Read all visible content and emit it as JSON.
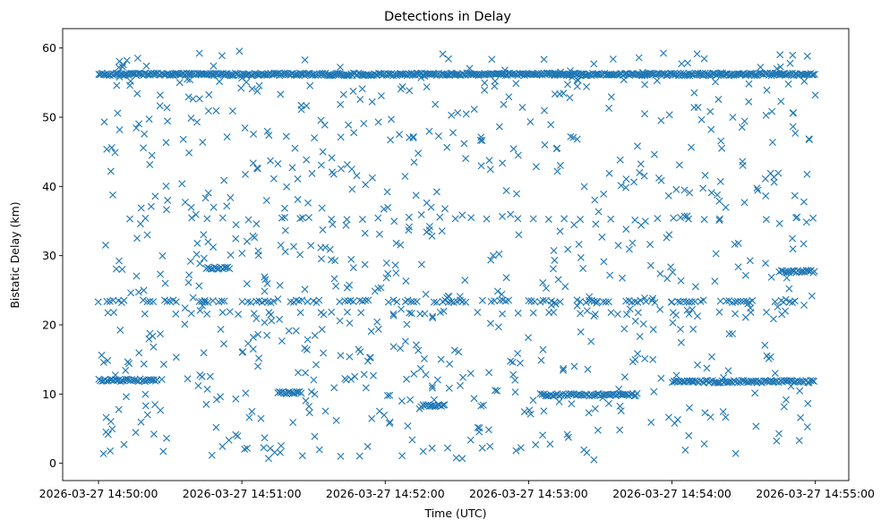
{
  "chart_data": {
    "type": "scatter",
    "title": "Detections in Delay",
    "xlabel": "Time (UTC)",
    "ylabel": "Bistatic Delay (km)",
    "marker": "x",
    "color": "#1f77b4",
    "xlim": [
      "2026-03-27 14:49:45",
      "2026-03-27 14:55:14"
    ],
    "ylim": [
      -2.5,
      62.8
    ],
    "x_ticks": [
      "2026-03-27 14:50:00",
      "2026-03-27 14:51:00",
      "2026-03-27 14:52:00",
      "2026-03-27 14:53:00",
      "2026-03-27 14:54:00",
      "2026-03-27 14:55:00"
    ],
    "y_ticks": [
      0,
      10,
      20,
      30,
      40,
      50,
      60
    ],
    "grid": false,
    "bands": [
      {
        "y": 56.2,
        "x_start": "2026-03-27 14:50:00",
        "x_end": "2026-03-27 14:55:00",
        "density": "continuous"
      },
      {
        "y": 23.4,
        "x_start": "2026-03-27 14:50:00",
        "x_end": "2026-03-27 14:55:00",
        "density": "intermittent"
      },
      {
        "y": 12.0,
        "x_start": "2026-03-27 14:50:00",
        "x_end": "2026-03-27 14:50:25",
        "density": "segment"
      },
      {
        "y": 9.9,
        "x_start": "2026-03-27 14:53:05",
        "x_end": "2026-03-27 14:53:45",
        "density": "segment"
      },
      {
        "y": 11.8,
        "x_start": "2026-03-27 14:54:00",
        "x_end": "2026-03-27 14:55:00",
        "density": "segment"
      },
      {
        "y": 27.7,
        "x_start": "2026-03-27 14:54:45",
        "x_end": "2026-03-27 14:55:00",
        "density": "segment"
      },
      {
        "y": 35.4,
        "x_start": "2026-03-27 14:50:00",
        "x_end": "2026-03-27 14:55:00",
        "density": "sparse"
      },
      {
        "y": 21.7,
        "x_start": "2026-03-27 14:50:00",
        "x_end": "2026-03-27 14:55:00",
        "density": "sparse"
      },
      {
        "y": 12.2,
        "x_start": "2026-03-27 14:51:30",
        "x_end": "2026-03-27 14:52:30",
        "density": "sparse"
      },
      {
        "y": 10.2,
        "x_start": "2026-03-27 14:51:15",
        "x_end": "2026-03-27 14:51:25",
        "density": "segment"
      },
      {
        "y": 8.3,
        "x_start": "2026-03-27 14:52:15",
        "x_end": "2026-03-27 14:52:25",
        "density": "segment"
      },
      {
        "y": 28.2,
        "x_start": "2026-03-27 14:50:45",
        "x_end": "2026-03-27 14:50:55",
        "density": "segment"
      }
    ],
    "noise": {
      "count": 820,
      "y_range": [
        0.5,
        59.8
      ],
      "x_start": "2026-03-27 14:50:00",
      "x_end": "2026-03-27 14:55:00"
    }
  }
}
